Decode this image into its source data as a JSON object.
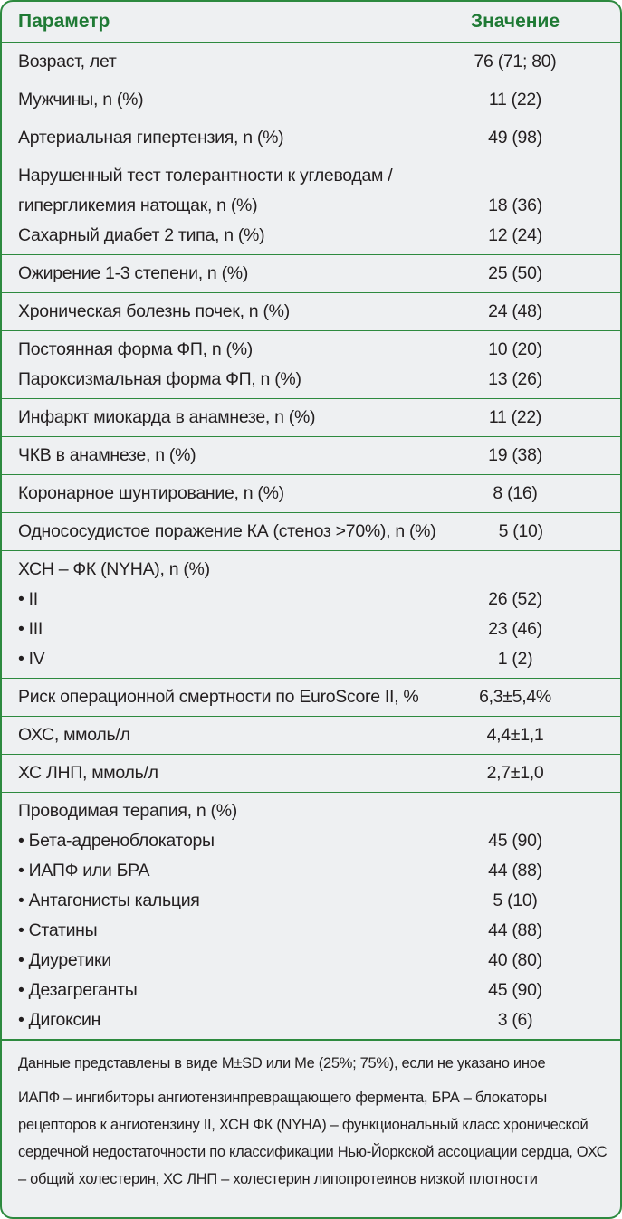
{
  "header": {
    "param": "Параметр",
    "value": "Значение"
  },
  "groups": [
    [
      {
        "param": "Возраст, лет",
        "value": "76 (71; 80)"
      }
    ],
    [
      {
        "param": "Мужчины, n (%)",
        "value": "11 (22)"
      }
    ],
    [
      {
        "param": "Артериальная гипертензия, n (%)",
        "value": "49 (98)"
      }
    ],
    [
      {
        "param": "Нарушенный тест толерантности к углеводам /",
        "value": ""
      },
      {
        "param": "гипергликемия натощак, n (%)",
        "value": "18 (36)"
      },
      {
        "param": "Сахарный диабет 2 типа, n (%)",
        "value": "12 (24)"
      }
    ],
    [
      {
        "param": "Ожирение 1-3 степени, n (%)",
        "value": "25 (50)"
      }
    ],
    [
      {
        "param": "Хроническая болезнь почек, n (%)",
        "value": "24 (48)"
      }
    ],
    [
      {
        "param": "Постоянная форма ФП, n (%)",
        "value": "10 (20)"
      },
      {
        "param": "Пароксизмальная форма ФП, n (%)",
        "value": "13 (26)"
      }
    ],
    [
      {
        "param": "Инфаркт миокарда в анамнезе, n (%)",
        "value": "11 (22)"
      }
    ],
    [
      {
        "param": "ЧКВ в анамнезе, n (%)",
        "value": "19 (38)"
      }
    ],
    [
      {
        "param": "Коронарное шунтирование, n (%)",
        "value": "8 (16)"
      }
    ],
    [
      {
        "param": "Однососудистое поражение КА (стеноз >70%), n (%)",
        "value": "5 (10)"
      }
    ],
    [
      {
        "param": "ХСН – ФК (NYHA), n (%)",
        "value": ""
      },
      {
        "param": "• II",
        "value": "26 (52)"
      },
      {
        "param": "• III",
        "value": "23 (46)"
      },
      {
        "param": "• IV",
        "value": "1 (2)"
      }
    ],
    [
      {
        "param": "Риск операционной смертности по EuroScore II, %",
        "value": "6,3±5,4%"
      }
    ],
    [
      {
        "param": "ОХС, ммоль/л",
        "value": "4,4±1,1"
      }
    ],
    [
      {
        "param": "ХС ЛНП, ммоль/л",
        "value": "2,7±1,0"
      }
    ],
    [
      {
        "param": "Проводимая терапия, n (%)",
        "value": ""
      },
      {
        "param": "• Бета-адреноблокаторы",
        "value": "45 (90)"
      },
      {
        "param": "• ИАПФ или БРА",
        "value": "44 (88)"
      },
      {
        "param": "• Антагонисты кальция",
        "value": "5 (10)"
      },
      {
        "param": "• Статины",
        "value": "44 (88)"
      },
      {
        "param": "• Диуретики",
        "value": "40 (80)"
      },
      {
        "param": "• Дезагреганты",
        "value": "45 (90)"
      },
      {
        "param": "• Дигоксин",
        "value": "3 (6)"
      }
    ]
  ],
  "notes": {
    "data_format": "Данные представлены в виде M±SD или Me (25%; 75%), если не указано иное",
    "abbreviations": "ИАПФ – ингибиторы ангиотензинпревращающего фермента, БРА – блокаторы рецепторов к ангиотензину II, ХСН ФК (NYHA) – функциональный класс хронической сердечной недостаточности по классификации Нью-Йоркской ассоциации сердца, ОХС – общий холестерин, ХС ЛНП – холестерин липопротеинов низкой плотности"
  },
  "colors": {
    "accent": "#2d8a3f",
    "header_text": "#1f7a35",
    "background": "#eef0f2"
  }
}
